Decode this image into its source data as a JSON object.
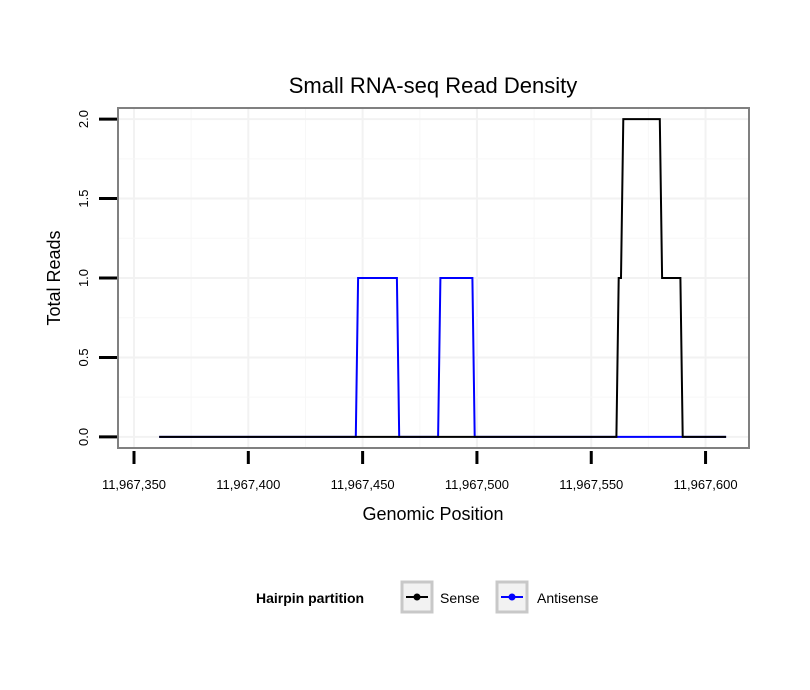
{
  "chart_data": {
    "type": "line",
    "title": "Small RNA-seq Read Density",
    "xlabel": "Genomic Position",
    "ylabel": "Total Reads",
    "xlim": [
      11967343,
      11967619
    ],
    "ylim": [
      -0.07,
      2.07
    ],
    "x_ticks": [
      11967350,
      11967400,
      11967450,
      11967500,
      11967550,
      11967600
    ],
    "x_tick_labels": [
      "11,967,350",
      "11,967,400",
      "11,967,450",
      "11,967,500",
      "11,967,550",
      "11,967,600"
    ],
    "y_ticks": [
      0,
      0.5,
      1,
      1.5,
      2
    ],
    "y_tick_labels": [
      "0.0",
      "0.5",
      "1.0",
      "1.5",
      "2.0"
    ],
    "grid": true,
    "legend": {
      "title": "Hairpin partition",
      "position": "bottom",
      "entries": [
        "Sense",
        "Antisense"
      ]
    },
    "series": [
      {
        "name": "Antisense",
        "color": "#0000ff",
        "x": [
          11967361,
          11967447,
          11967448,
          11967465,
          11967466,
          11967483,
          11967484,
          11967498,
          11967499,
          11967609
        ],
        "y": [
          0,
          0,
          1,
          1,
          0,
          0,
          1,
          1,
          0,
          0
        ]
      },
      {
        "name": "Sense",
        "color": "#000000",
        "x": [
          11967361,
          11967561,
          11967562,
          11967563,
          11967564,
          11967580,
          11967581,
          11967589,
          11967590,
          11967609
        ],
        "y": [
          0,
          0,
          1,
          1,
          2,
          2,
          1,
          1,
          0,
          0
        ]
      }
    ]
  }
}
